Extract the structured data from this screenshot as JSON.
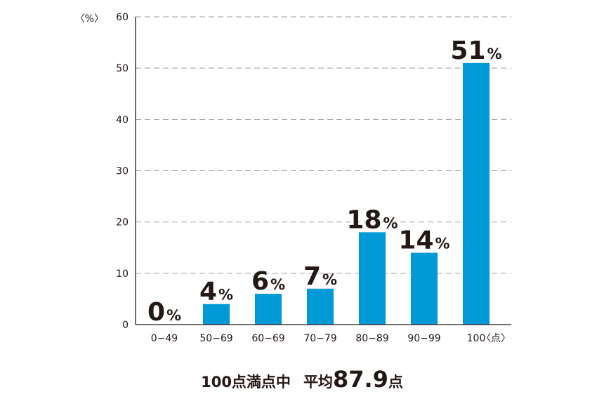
{
  "chart_data": {
    "type": "bar",
    "categories": [
      "0−49",
      "50−69",
      "60−69",
      "70−79",
      "80−89",
      "90−99",
      "100"
    ],
    "values": [
      0,
      4,
      6,
      7,
      18,
      14,
      51
    ],
    "data_label_suffix": "%",
    "ylim": [
      0,
      60
    ],
    "yticks": [
      0,
      10,
      20,
      30,
      40,
      50,
      60
    ],
    "y_unit_label": "〈%〉",
    "x_unit_label": "〈点〉",
    "grid": true,
    "bar_color": "#009ad6"
  },
  "footer": {
    "part1": "100点満点中",
    "part2": "平均",
    "average": "87.9",
    "unit": "点"
  }
}
